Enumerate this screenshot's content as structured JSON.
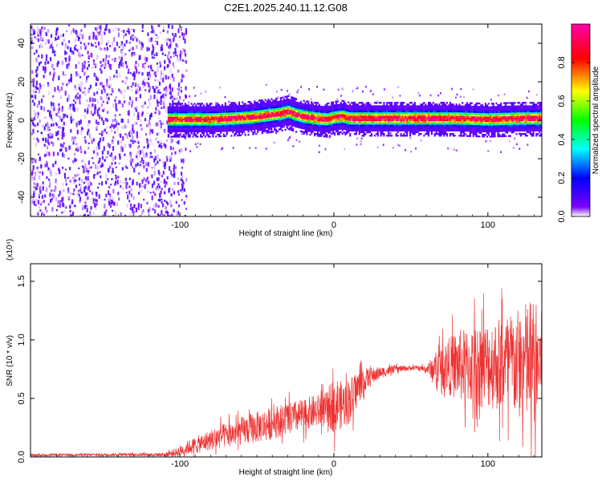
{
  "title": "C2E1.2025.240.11.12.G08",
  "chart_data": [
    {
      "type": "heatmap",
      "name": "spectrogram",
      "xlabel": "Height of straight line (km)",
      "ylabel": "Frequency (Hz)",
      "xlim": [
        -197,
        135
      ],
      "ylim": [
        -50,
        50
      ],
      "xticks": [
        -100,
        0,
        100
      ],
      "xtick_labels": [
        "-100",
        "0",
        "100"
      ],
      "yticks": [
        -40,
        -20,
        0,
        20,
        40
      ],
      "ytick_labels": [
        "-40",
        "-20",
        "0",
        "20",
        "40"
      ],
      "noise_region_x": [
        -197,
        -100
      ],
      "signal_start_x": -108,
      "signal_center_hz": [
        [
          -108,
          0.5
        ],
        [
          -95,
          0.5
        ],
        [
          -80,
          0.5
        ],
        [
          -65,
          1.0
        ],
        [
          -55,
          1.5
        ],
        [
          -45,
          2.5
        ],
        [
          -35,
          3.5
        ],
        [
          -30,
          4.5
        ],
        [
          -25,
          3.0
        ],
        [
          -20,
          2.0
        ],
        [
          -12,
          1.0
        ],
        [
          -5,
          0.5
        ],
        [
          0,
          1.5
        ],
        [
          5,
          2.0
        ],
        [
          10,
          1.0
        ],
        [
          20,
          1.0
        ],
        [
          40,
          1.0
        ],
        [
          60,
          1.0
        ],
        [
          80,
          1.0
        ],
        [
          100,
          0.5
        ],
        [
          120,
          1.0
        ],
        [
          135,
          1.0
        ]
      ],
      "colorbar": {
        "label": "Normalized spectral amplitude",
        "range": [
          0,
          1
        ],
        "ticks": [
          0.0,
          0.2,
          0.4,
          0.6,
          0.8
        ],
        "tick_labels": [
          "0.0",
          "0.2",
          "0.4",
          "0.6",
          "0.8"
        ],
        "colors": [
          "#ffffff",
          "#7b00ff",
          "#0000ff",
          "#00ffff",
          "#00ff00",
          "#ffff00",
          "#ff0000",
          "#ff00aa"
        ]
      }
    },
    {
      "type": "line",
      "name": "snr",
      "xlabel": "Height of straight line (km)",
      "ylabel": "SNR (10 * v/v)",
      "scale_label": "(x10⁴)",
      "xlim": [
        -197,
        135
      ],
      "ylim": [
        0,
        1.65
      ],
      "xticks": [
        -100,
        0,
        100
      ],
      "xtick_labels": [
        "-100",
        "0",
        "100"
      ],
      "yticks": [
        0.0,
        0.5,
        1.0,
        1.5
      ],
      "ytick_labels": [
        "0.0",
        "0.5",
        "1.0",
        "1.5"
      ],
      "color": "#ee3333",
      "envelope": {
        "x": [
          -197,
          -140,
          -110,
          -102,
          -95,
          -85,
          -75,
          -65,
          -55,
          -45,
          -35,
          -25,
          -15,
          -5,
          0,
          5,
          10,
          15,
          20,
          30,
          40,
          50,
          55,
          60,
          65,
          70,
          80,
          90,
          100,
          110,
          120,
          128,
          135
        ],
        "mean": [
          0.015,
          0.02,
          0.02,
          0.04,
          0.08,
          0.12,
          0.17,
          0.2,
          0.24,
          0.27,
          0.31,
          0.34,
          0.38,
          0.4,
          0.46,
          0.44,
          0.48,
          0.58,
          0.66,
          0.72,
          0.75,
          0.76,
          0.76,
          0.75,
          0.76,
          0.77,
          0.78,
          0.78,
          0.79,
          0.8,
          0.79,
          0.8,
          0.8
        ],
        "amp": [
          0.01,
          0.012,
          0.015,
          0.04,
          0.06,
          0.08,
          0.1,
          0.11,
          0.13,
          0.14,
          0.14,
          0.14,
          0.14,
          0.15,
          0.25,
          0.2,
          0.2,
          0.16,
          0.1,
          0.05,
          0.03,
          0.02,
          0.02,
          0.03,
          0.12,
          0.2,
          0.3,
          0.34,
          0.38,
          0.42,
          0.48,
          0.58,
          0.45
        ]
      }
    }
  ]
}
